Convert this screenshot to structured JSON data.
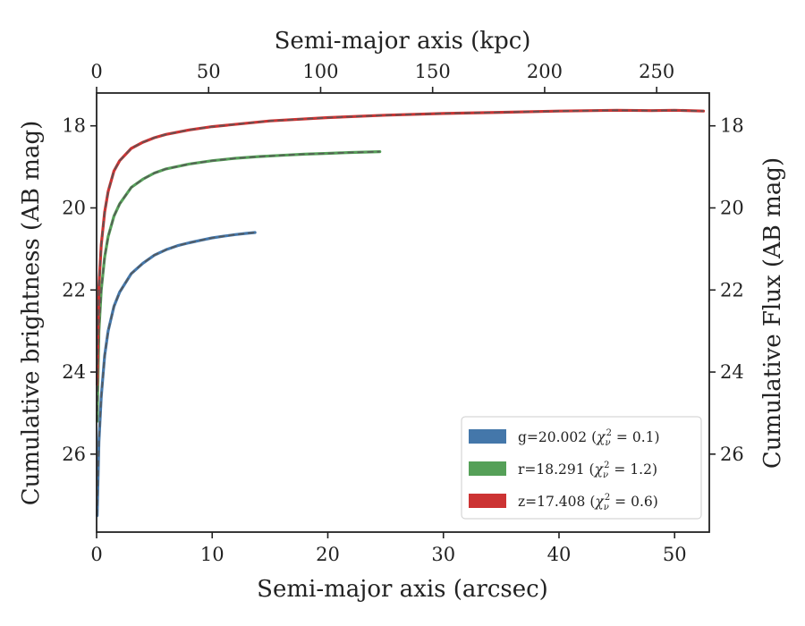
{
  "chart_data": {
    "type": "line",
    "xlabel": "Semi-major axis (arcsec)",
    "top_xlabel": "Semi-major axis (kpc)",
    "ylabel": "Cumulative brightness (AB mag)",
    "right_ylabel": "Cumulative Flux (AB mag)",
    "xlim": [
      0,
      53
    ],
    "ylim": [
      27.9,
      17.2
    ],
    "y_inverted": true,
    "top_xlim": [
      0,
      273.5
    ],
    "x_ticks": [
      0,
      10,
      20,
      30,
      40,
      50
    ],
    "top_x_ticks": [
      0,
      50,
      100,
      150,
      200,
      250
    ],
    "y_ticks": [
      18,
      20,
      22,
      24,
      26
    ],
    "grid": false,
    "legend_position": "lower-right",
    "series": [
      {
        "name": "g=20.002",
        "chi_label": "χ",
        "chi_sub": "ν",
        "chi_sup": "2",
        "chi_value": " = 0.1)",
        "color": "#4477aa",
        "x": [
          0.05,
          0.2,
          0.4,
          0.7,
          1.0,
          1.5,
          2.0,
          3.0,
          4.0,
          5.0,
          6.0,
          7.0,
          8.0,
          9.0,
          10.0,
          11.0,
          12.0,
          13.0,
          13.7
        ],
        "y": [
          27.5,
          25.7,
          24.6,
          23.6,
          23.0,
          22.4,
          22.05,
          21.6,
          21.35,
          21.15,
          21.02,
          20.92,
          20.85,
          20.79,
          20.73,
          20.69,
          20.65,
          20.62,
          20.6
        ]
      },
      {
        "name": "r=18.291",
        "chi_label": "χ",
        "chi_sub": "ν",
        "chi_sup": "2",
        "chi_value": " = 1.2)",
        "color": "#55a058",
        "x": [
          0.05,
          0.2,
          0.4,
          0.7,
          1.0,
          1.5,
          2.0,
          3.0,
          4.0,
          5.0,
          6.0,
          8.0,
          10.0,
          12.0,
          14.0,
          16.0,
          18.0,
          20.0,
          22.0,
          24.5
        ],
        "y": [
          25.2,
          23.0,
          22.0,
          21.2,
          20.7,
          20.2,
          19.9,
          19.5,
          19.3,
          19.15,
          19.05,
          18.93,
          18.85,
          18.79,
          18.75,
          18.72,
          18.69,
          18.67,
          18.65,
          18.63
        ]
      },
      {
        "name": "z=17.408",
        "chi_label": "χ",
        "chi_sub": "ν",
        "chi_sup": "2",
        "chi_value": " = 0.6)",
        "color": "#cc3333",
        "x": [
          0.05,
          0.2,
          0.4,
          0.7,
          1.0,
          1.5,
          2.0,
          3.0,
          4.0,
          5.0,
          6.0,
          8.0,
          10.0,
          15.0,
          20.0,
          25.0,
          30.0,
          35.0,
          40.0,
          45.0,
          48.0,
          50.0,
          52.5
        ],
        "y": [
          24.3,
          21.9,
          20.9,
          20.1,
          19.6,
          19.1,
          18.85,
          18.55,
          18.4,
          18.29,
          18.21,
          18.1,
          18.02,
          17.88,
          17.8,
          17.74,
          17.7,
          17.67,
          17.64,
          17.62,
          17.63,
          17.62,
          17.64
        ]
      }
    ]
  }
}
